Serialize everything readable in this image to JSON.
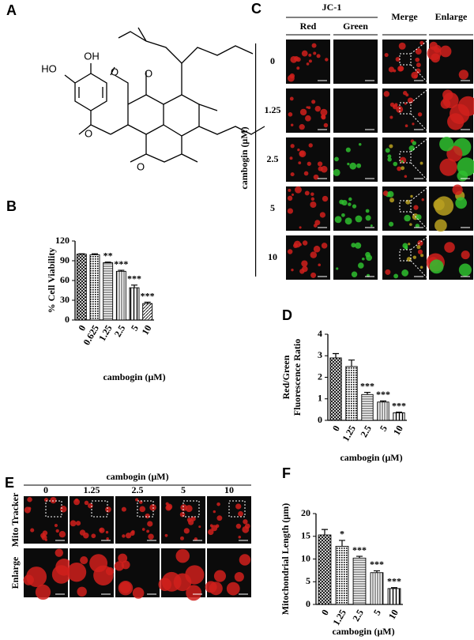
{
  "panels": [
    "A",
    "B",
    "C",
    "D",
    "E",
    "F"
  ],
  "structure": {
    "atoms": [
      "OH",
      "HO",
      "O",
      "O",
      "O",
      "O"
    ]
  },
  "panel_c": {
    "title": "JC-1",
    "columns": [
      "Red",
      "Green",
      "Merge",
      "Enlarge"
    ],
    "rows": [
      "0",
      "1.25",
      "2.5",
      "5",
      "10"
    ],
    "axis_label": "cambogin (μM)"
  },
  "panel_e": {
    "title": "cambogin (μM)",
    "columns": [
      "0",
      "1.25",
      "2.5",
      "5",
      "10"
    ],
    "rows": [
      "Mito Tracker",
      "Enlarge"
    ]
  },
  "chart_data": [
    {
      "type": "bar",
      "ylabel": [
        "% Cell Viability"
      ],
      "xlabel": "cambogin (μM)",
      "categories": [
        "0",
        "0.625",
        "1.25",
        "2.5",
        "5",
        "10"
      ],
      "values": [
        100,
        99,
        87,
        74,
        49,
        25
      ],
      "errors": [
        0.5,
        1.5,
        1,
        1.5,
        4,
        2
      ],
      "stars": [
        null,
        null,
        "**",
        "***",
        "***",
        "***"
      ],
      "ylim": [
        0,
        120
      ],
      "yticks": [
        0,
        30,
        60,
        90,
        120
      ]
    },
    {
      "type": "bar",
      "ylabel": [
        "Red/Green",
        "Fluorescence Ratio"
      ],
      "xlabel": "cambogin (μM)",
      "categories": [
        "0",
        "1.25",
        "2.5",
        "5",
        "10"
      ],
      "values": [
        2.9,
        2.5,
        1.2,
        0.85,
        0.35
      ],
      "errors": [
        0.2,
        0.3,
        0.1,
        0.05,
        0.03
      ],
      "stars": [
        null,
        null,
        "***",
        "***",
        "***"
      ],
      "ylim": [
        0,
        4
      ],
      "yticks": [
        0,
        1,
        2,
        3,
        4
      ]
    },
    {
      "type": "bar",
      "ylabel": [
        "Mitochondrial Length (μm)"
      ],
      "xlabel": "cambogin (μM)",
      "categories": [
        "0",
        "1.25",
        "2.5",
        "5",
        "10"
      ],
      "values": [
        15.3,
        12.8,
        10.2,
        7,
        3.5
      ],
      "errors": [
        1.2,
        1.3,
        0.4,
        0.4,
        0.2
      ],
      "stars": [
        null,
        "*",
        "***",
        "***",
        "***"
      ],
      "ylim": [
        0,
        20
      ],
      "yticks": [
        0,
        5,
        10,
        15,
        20
      ]
    }
  ]
}
